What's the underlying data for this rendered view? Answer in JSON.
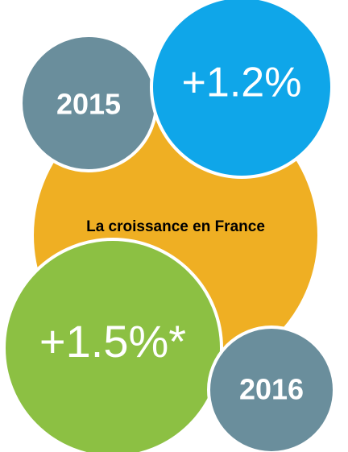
{
  "title": "La croissance en France",
  "bubbles": [
    {
      "label": "2015"
    },
    {
      "label": "+1.2%"
    },
    {
      "label": "+1.5%*"
    },
    {
      "label": "2016"
    }
  ]
}
